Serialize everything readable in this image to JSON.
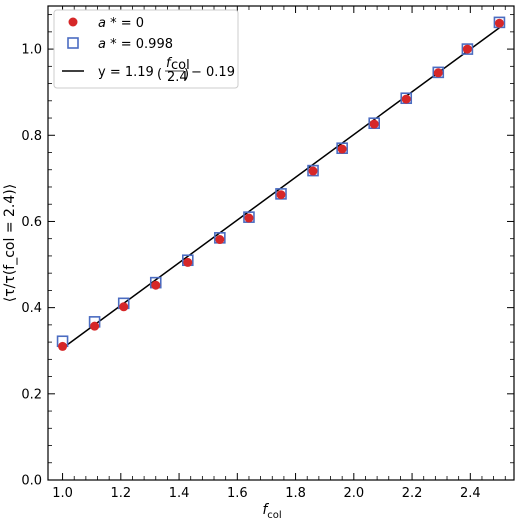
{
  "chart_data": {
    "type": "scatter",
    "xlabel_main": "f",
    "xlabel_sub": "col",
    "ylabel": "⟨τ/τ(f_col = 2.4)⟩",
    "xlim": [
      0.95,
      2.55
    ],
    "ylim": [
      0.0,
      1.1
    ],
    "x_ticks": [
      1.0,
      1.2,
      1.4,
      1.6,
      1.8,
      2.0,
      2.2,
      2.4
    ],
    "x_tick_labels": [
      "1.0",
      "1.2",
      "1.4",
      "1.6",
      "1.8",
      "2.0",
      "2.2",
      "2.4"
    ],
    "y_ticks": [
      0.0,
      0.2,
      0.4,
      0.6,
      0.8,
      1.0
    ],
    "y_tick_labels": [
      "0.0",
      "0.2",
      "0.4",
      "0.6",
      "0.8",
      "1.0"
    ],
    "grid": false,
    "legend_position": "top-left",
    "series": [
      {
        "name": "a* = 0",
        "marker": "filled-circle",
        "color": "#d62728",
        "x": [
          1.0,
          1.11,
          1.21,
          1.32,
          1.43,
          1.54,
          1.64,
          1.75,
          1.86,
          1.96,
          2.07,
          2.18,
          2.29,
          2.39,
          2.5
        ],
        "y": [
          0.31,
          0.357,
          0.402,
          0.452,
          0.505,
          0.558,
          0.608,
          0.662,
          0.717,
          0.768,
          0.826,
          0.884,
          0.945,
          1.0,
          1.06
        ]
      },
      {
        "name": "a* = 0.998",
        "marker": "open-square",
        "color": "#4b6cc1",
        "x": [
          1.0,
          1.11,
          1.21,
          1.32,
          1.43,
          1.54,
          1.64,
          1.75,
          1.86,
          1.96,
          2.07,
          2.18,
          2.29,
          2.39,
          2.5
        ],
        "y": [
          0.322,
          0.367,
          0.41,
          0.458,
          0.51,
          0.562,
          0.61,
          0.664,
          0.718,
          0.77,
          0.828,
          0.886,
          0.946,
          1.0,
          1.062
        ]
      },
      {
        "name": "y = 1.19(f_col/2.4) − 0.19",
        "marker": "line",
        "color": "#000000",
        "slope": 1.19,
        "divisor": 2.4,
        "intercept": -0.19,
        "x_range": [
          1.0,
          2.5
        ]
      }
    ],
    "legend": [
      {
        "a": "a",
        "star": " * = ",
        "value": "0"
      },
      {
        "a": "a",
        "star": " * = ",
        "value": "0.998"
      },
      {
        "prefix": "y = 1.19",
        "frac_num": "f",
        "frac_num_sub": "col",
        "frac_den": "2.4",
        "suffix": " − 0.19"
      }
    ]
  }
}
